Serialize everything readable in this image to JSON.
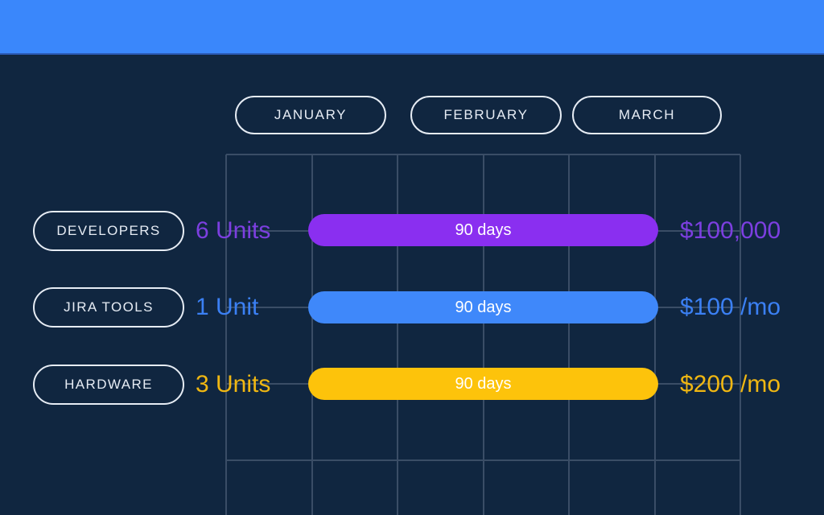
{
  "colors": {
    "background": "#102640",
    "top_bar": "#3a87fb",
    "grid_line": "#3a4d66",
    "pill_outline": "#e6ecf4",
    "bar_label_text": "#ffffff"
  },
  "months": [
    {
      "label": "JANUARY"
    },
    {
      "label": "FEBRUARY"
    },
    {
      "label": "MARCH"
    }
  ],
  "rows": [
    {
      "label": "DEVELOPERS",
      "units": "6 Units",
      "duration": "90 days",
      "cost": "$100,000",
      "bar_color": "#8a2ff0",
      "text_color": "#7c3fe0"
    },
    {
      "label": "JIRA TOOLS",
      "units": "1 Unit",
      "duration": "90 days",
      "cost": "$100 /mo",
      "bar_color": "#3f88fa",
      "text_color": "#3b80f4"
    },
    {
      "label": "HARDWARE",
      "units": "3 Units",
      "duration": "90 days",
      "cost": "$200 /mo",
      "bar_color": "#fdc30b",
      "text_color": "#f0b712"
    }
  ],
  "chart_data": {
    "type": "bar",
    "subtype": "gantt-resource-timeline",
    "title": "",
    "categories": [
      "DEVELOPERS",
      "JIRA TOOLS",
      "HARDWARE"
    ],
    "x_axis": {
      "labels": [
        "JANUARY",
        "FEBRUARY",
        "MARCH"
      ],
      "columns_per_month": 2,
      "total_columns": 6
    },
    "series": [
      {
        "name": "duration_days",
        "values": [
          90,
          90,
          90
        ]
      },
      {
        "name": "units",
        "values": [
          6,
          1,
          3
        ]
      },
      {
        "name": "cost",
        "values": [
          "$100,000",
          "$100 /mo",
          "$200 /mo"
        ]
      }
    ],
    "bars": [
      {
        "category": "DEVELOPERS",
        "label": "90 days",
        "start": "JANUARY",
        "end": "MARCH",
        "color": "#8a2ff0"
      },
      {
        "category": "JIRA TOOLS",
        "label": "90 days",
        "start": "JANUARY",
        "end": "MARCH",
        "color": "#3f88fa"
      },
      {
        "category": "HARDWARE",
        "label": "90 days",
        "start": "JANUARY",
        "end": "MARCH",
        "color": "#fdc30b"
      }
    ],
    "grid": true,
    "legend": false
  }
}
